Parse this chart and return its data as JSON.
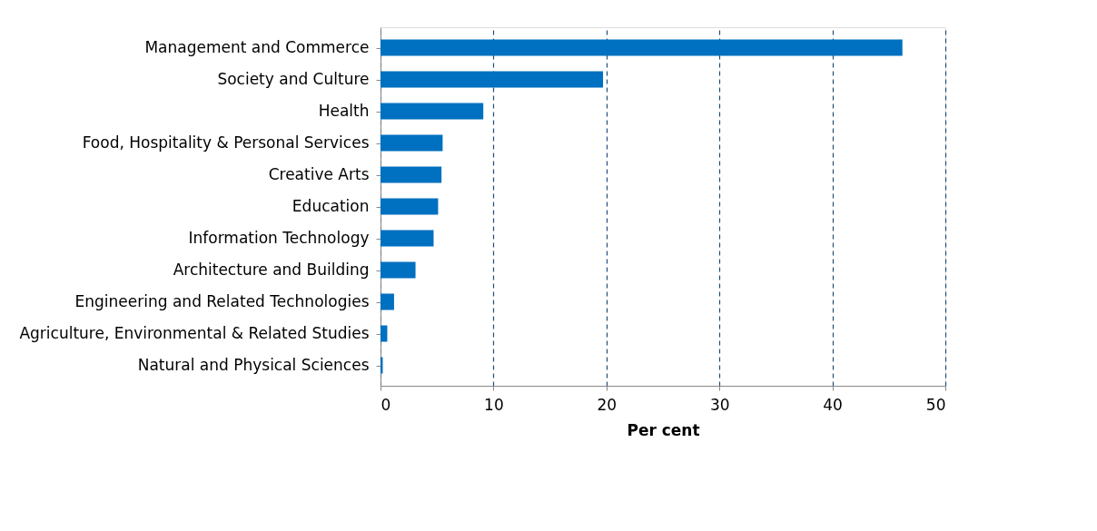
{
  "chart_data": {
    "type": "bar",
    "orientation": "horizontal",
    "xlabel": "Per cent",
    "categories": [
      "Management and Commerce",
      "Society and Culture",
      "Health",
      "Food, Hospitality & Personal Services",
      "Creative Arts",
      "Education",
      "Information Technology",
      "Architecture and Building",
      "Engineering and Related Technologies",
      "Agriculture, Environmental & Related Studies",
      "Natural and Physical Sciences"
    ],
    "values": [
      46.2,
      19.7,
      9.1,
      5.5,
      5.4,
      5.1,
      4.7,
      3.1,
      1.2,
      0.6,
      0.2
    ],
    "color": "#0070c0",
    "xlim": [
      0,
      50
    ],
    "xticks": [
      0,
      10,
      20,
      30,
      40,
      50
    ],
    "grid": "x",
    "line_style": "dashed"
  }
}
